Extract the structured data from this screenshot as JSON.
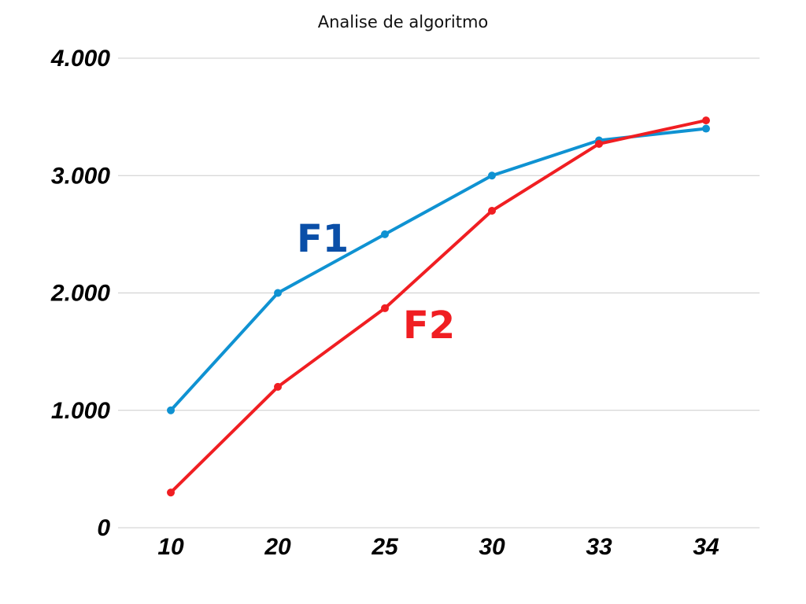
{
  "chart_data": {
    "type": "line",
    "title": "Analise de algoritmo",
    "xlabel": "",
    "ylabel": "",
    "categories": [
      "10",
      "20",
      "25",
      "30",
      "33",
      "34"
    ],
    "yticks": [
      "0",
      "1.000",
      "2.000",
      "3.000",
      "4.000"
    ],
    "ylim": [
      0,
      4000
    ],
    "grid": true,
    "legend": "none",
    "series": [
      {
        "name": "F1",
        "color": "#0f92d2",
        "label_color": "#0a4fa8",
        "values": [
          1000,
          2000,
          2500,
          3000,
          3300,
          3400
        ]
      },
      {
        "name": "F2",
        "color": "#f01e22",
        "label_color": "#f01e22",
        "values": [
          300,
          1200,
          1870,
          2700,
          3270,
          3470
        ]
      }
    ]
  }
}
